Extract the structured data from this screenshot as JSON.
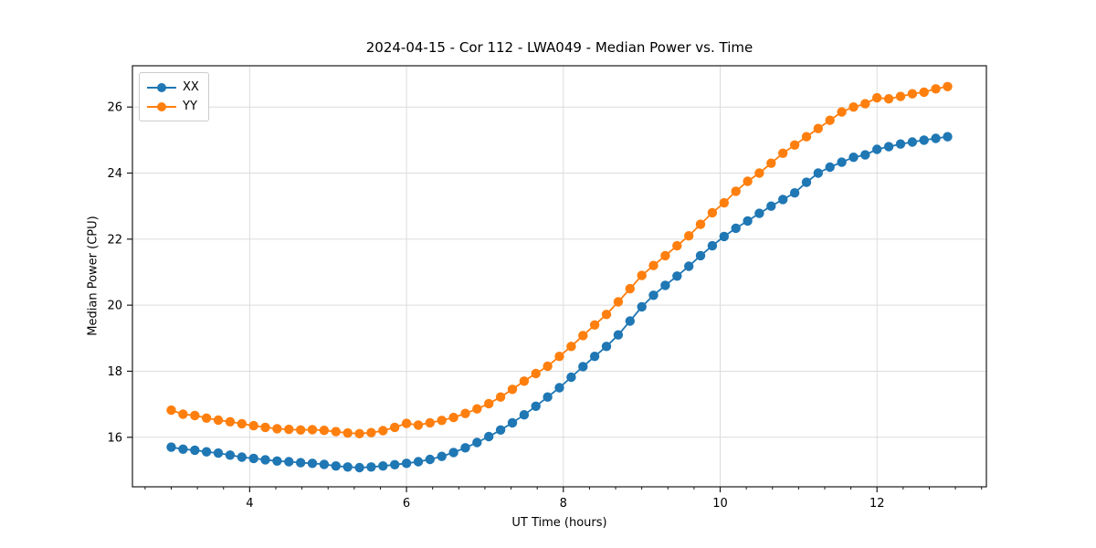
{
  "chart_data": {
    "type": "line",
    "title": "2024-04-15 - Cor 112 - LWA049 - Median Power vs. Time",
    "xlabel": "UT Time (hours)",
    "ylabel": "Median Power (CPU)",
    "xlim": [
      2.505,
      13.395
    ],
    "ylim": [
      14.5,
      27.25
    ],
    "x_major_ticks": [
      4,
      6,
      8,
      10,
      12
    ],
    "x_minor_tick_step": 0.3333333,
    "y_major_ticks": [
      16,
      18,
      20,
      22,
      24,
      26
    ],
    "grid": true,
    "legend_position": "upper-left",
    "marker": "circle",
    "x": [
      3.0,
      3.15,
      3.3,
      3.45,
      3.6,
      3.75,
      3.9,
      4.05,
      4.2,
      4.35,
      4.5,
      4.65,
      4.8,
      4.95,
      5.1,
      5.25,
      5.4,
      5.55,
      5.7,
      5.85,
      6.0,
      6.15,
      6.3,
      6.45,
      6.6,
      6.75,
      6.9,
      7.05,
      7.2,
      7.35,
      7.5,
      7.65,
      7.8,
      7.95,
      8.1,
      8.25,
      8.4,
      8.55,
      8.7,
      8.85,
      9.0,
      9.15,
      9.3,
      9.45,
      9.6,
      9.75,
      9.9,
      10.05,
      10.2,
      10.35,
      10.5,
      10.65,
      10.8,
      10.95,
      11.1,
      11.25,
      11.4,
      11.55,
      11.7,
      11.85,
      12.0,
      12.15,
      12.3,
      12.45,
      12.6,
      12.75,
      12.9
    ],
    "series": [
      {
        "name": "XX",
        "color": "#1f77b4",
        "values": [
          15.7,
          15.64,
          15.61,
          15.56,
          15.52,
          15.46,
          15.4,
          15.36,
          15.32,
          15.28,
          15.26,
          15.23,
          15.21,
          15.18,
          15.13,
          15.1,
          15.08,
          15.1,
          15.13,
          15.17,
          15.21,
          15.26,
          15.33,
          15.42,
          15.54,
          15.68,
          15.84,
          16.02,
          16.22,
          16.44,
          16.68,
          16.94,
          17.22,
          17.5,
          17.82,
          18.14,
          18.45,
          18.75,
          19.1,
          19.52,
          19.95,
          20.3,
          20.6,
          20.88,
          21.18,
          21.5,
          21.8,
          22.08,
          22.33,
          22.55,
          22.78,
          23.0,
          23.2,
          23.4,
          23.72,
          24.0,
          24.18,
          24.33,
          24.48,
          24.55,
          24.72,
          24.8,
          24.88,
          24.94,
          25.0,
          25.05,
          25.1
        ]
      },
      {
        "name": "YY",
        "color": "#ff7f0e",
        "values": [
          16.82,
          16.7,
          16.66,
          16.58,
          16.52,
          16.47,
          16.41,
          16.35,
          16.3,
          16.26,
          16.24,
          16.22,
          16.23,
          16.21,
          16.17,
          16.13,
          16.11,
          16.14,
          16.2,
          16.3,
          16.42,
          16.37,
          16.44,
          16.51,
          16.6,
          16.72,
          16.86,
          17.02,
          17.22,
          17.45,
          17.7,
          17.93,
          18.15,
          18.45,
          18.75,
          19.08,
          19.4,
          19.72,
          20.1,
          20.5,
          20.9,
          21.2,
          21.5,
          21.8,
          22.1,
          22.45,
          22.8,
          23.1,
          23.45,
          23.75,
          24.0,
          24.3,
          24.6,
          24.85,
          25.1,
          25.35,
          25.6,
          25.85,
          26.0,
          26.1,
          26.28,
          26.25,
          26.32,
          26.4,
          26.45,
          26.55,
          26.62
        ]
      }
    ],
    "style": {
      "grid_color": "#dcdcdc",
      "spine_color": "#1a1a1a",
      "tick_color": "#1a1a1a",
      "text_color": "#000000",
      "background": "#ffffff"
    }
  }
}
